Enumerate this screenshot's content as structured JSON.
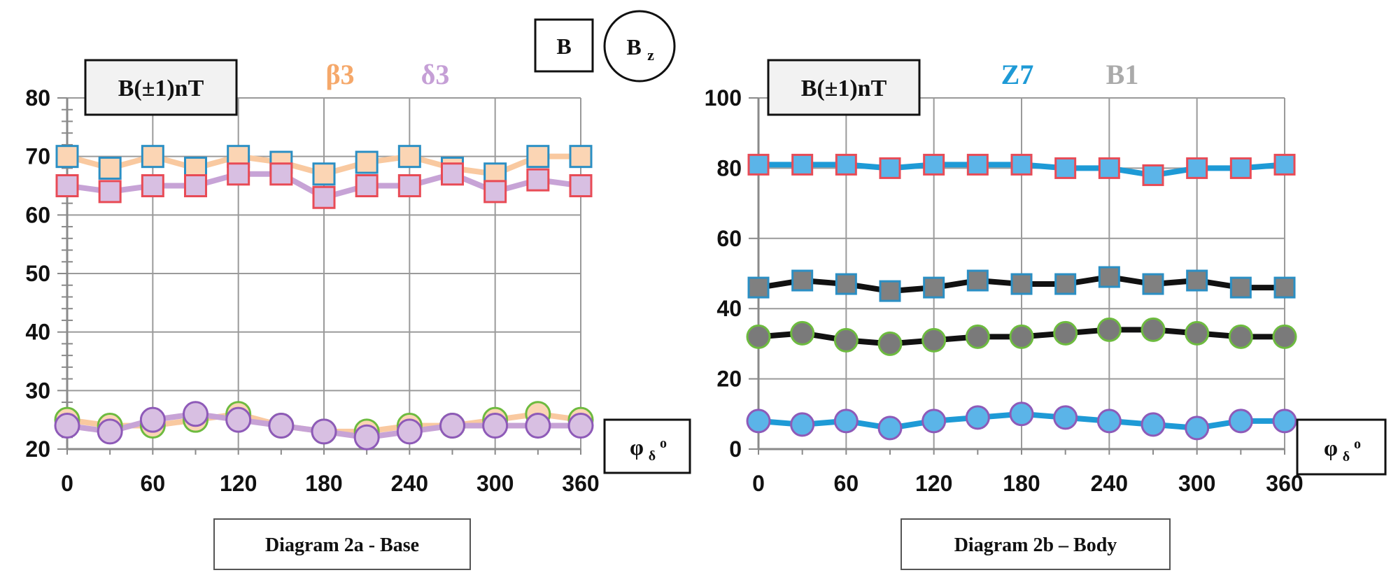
{
  "header": {
    "b_box_label": "B",
    "bz_circle_base": "B",
    "bz_circle_sub": "z"
  },
  "chart_data": [
    {
      "type": "line",
      "id": "2a",
      "caption": "Diagram 2a - Base",
      "ylabel": "B(±1)nT",
      "xlabel_base": "φ",
      "xlabel_sub": "δ",
      "xlabel_sup": "o",
      "ylim": [
        20,
        80
      ],
      "yticks": [
        20,
        30,
        40,
        50,
        60,
        70,
        80
      ],
      "xlim": [
        0,
        360
      ],
      "xticks": [
        0,
        60,
        120,
        180,
        240,
        300,
        360
      ],
      "grid": true,
      "legend": [
        {
          "label": "β3",
          "color": "#f5a86a"
        },
        {
          "label": "δ3",
          "color": "#c59fd6"
        }
      ],
      "x": [
        0,
        30,
        60,
        90,
        120,
        150,
        180,
        210,
        240,
        270,
        300,
        330,
        360
      ],
      "series": [
        {
          "name": "β3 upper",
          "line": "#f9c9a0",
          "marker": "square",
          "fill": "#fbd5b4",
          "edge": "#2b8fc4",
          "values": [
            70,
            68,
            70,
            68,
            70,
            69,
            67,
            69,
            70,
            68,
            67,
            70,
            70
          ]
        },
        {
          "name": "δ3 upper",
          "line": "#c7a3d6",
          "marker": "square",
          "fill": "#d8bfe2",
          "edge": "#e84b56",
          "values": [
            65,
            64,
            65,
            65,
            67,
            67,
            63,
            65,
            65,
            67,
            64,
            66,
            65
          ]
        },
        {
          "name": "β3 lower",
          "line": "#f9c9a0",
          "marker": "circle",
          "fill": "#fbd5b4",
          "edge": "#6dbb3f",
          "values": [
            25,
            24,
            24,
            25,
            26,
            24,
            23,
            23,
            24,
            24,
            25,
            26,
            25
          ]
        },
        {
          "name": "δ3 lower",
          "line": "#c7a3d6",
          "marker": "circle",
          "fill": "#d8bfe2",
          "edge": "#8e5ab8",
          "values": [
            24,
            23,
            25,
            26,
            25,
            24,
            23,
            22,
            23,
            24,
            24,
            24,
            24
          ]
        }
      ]
    },
    {
      "type": "line",
      "id": "2b",
      "caption": "Diagram 2b – Body",
      "ylabel": "B(±1)nT",
      "xlabel_base": "φ",
      "xlabel_sub": "δ",
      "xlabel_sup": "o",
      "ylim": [
        0,
        100
      ],
      "yticks": [
        0,
        20,
        40,
        60,
        80,
        100
      ],
      "xlim": [
        0,
        360
      ],
      "xticks": [
        0,
        60,
        120,
        180,
        240,
        300,
        360
      ],
      "grid": true,
      "legend": [
        {
          "label": "Z7",
          "color": "#1e9ad6"
        },
        {
          "label": "B1",
          "color": "#aaaaaa"
        }
      ],
      "x": [
        0,
        30,
        60,
        90,
        120,
        150,
        180,
        210,
        240,
        270,
        300,
        330,
        360
      ],
      "series": [
        {
          "name": "Z7 upper",
          "line": "#1e9ad6",
          "marker": "square",
          "fill": "#5bb4e8",
          "edge": "#e84b56",
          "values": [
            81,
            81,
            81,
            80,
            81,
            81,
            81,
            80,
            80,
            78,
            80,
            80,
            81
          ]
        },
        {
          "name": "B1 upper",
          "line": "#111111",
          "marker": "square",
          "fill": "#808080",
          "edge": "#2b8fc4",
          "values": [
            46,
            48,
            47,
            45,
            46,
            48,
            47,
            47,
            49,
            47,
            48,
            46,
            46
          ]
        },
        {
          "name": "B1 lower",
          "line": "#111111",
          "marker": "circle",
          "fill": "#7a7a7a",
          "edge": "#6dbb3f",
          "values": [
            32,
            33,
            31,
            30,
            31,
            32,
            32,
            33,
            34,
            34,
            33,
            32,
            32
          ]
        },
        {
          "name": "Z7 lower",
          "line": "#1e9ad6",
          "marker": "circle",
          "fill": "#5bb4e8",
          "edge": "#8e5ab8",
          "values": [
            8,
            7,
            8,
            6,
            8,
            9,
            10,
            9,
            8,
            7,
            6,
            8,
            8
          ]
        }
      ]
    }
  ]
}
